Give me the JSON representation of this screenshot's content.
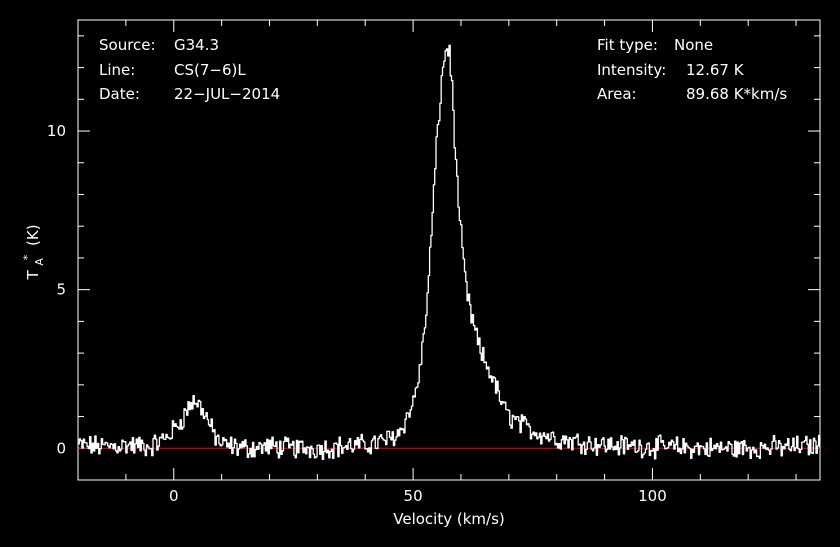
{
  "chart_data": {
    "type": "line",
    "xlabel": "Velocity (km/s)",
    "ylabel": {
      "main": "T",
      "sup": "*",
      "sub": "A",
      "unit": "(K)"
    },
    "xlim": [
      -20,
      135
    ],
    "ylim": [
      -1,
      13.5
    ],
    "xticks": [
      0,
      50,
      100
    ],
    "yticks": [
      0,
      5,
      10
    ],
    "baseline": {
      "y": 0,
      "color": "#ff0000"
    },
    "line_color": "#ffffff",
    "background": "#000000",
    "info_left": [
      {
        "label": "Source:",
        "value": "G34.3"
      },
      {
        "label": "Line:",
        "value": "CS(7−6)L"
      },
      {
        "label": "Date:",
        "value": "22−JUL−2014"
      }
    ],
    "info_right": [
      {
        "label": "Fit type:",
        "value": "None"
      },
      {
        "label": "Intensity:",
        "value": "12.67 K"
      },
      {
        "label": "Area:",
        "value": "89.68 K*km/s"
      }
    ],
    "series": [
      {
        "x": [
          -20,
          -15,
          -10,
          -5,
          -2,
          0,
          2,
          3,
          4,
          5,
          6,
          7,
          8,
          9,
          10,
          15,
          20,
          25,
          30,
          35,
          40,
          43,
          45,
          47,
          48,
          49,
          50,
          51,
          52,
          53,
          54,
          55,
          56,
          56.5,
          57,
          57.5,
          58,
          58.5,
          59,
          60,
          61,
          62,
          63,
          64,
          65,
          66,
          67,
          68,
          69,
          70,
          72,
          74,
          76,
          78,
          80,
          85,
          90,
          100,
          110,
          120,
          130,
          135
        ],
        "y": [
          0.1,
          0.05,
          0.1,
          0.05,
          0.3,
          0.6,
          1.0,
          1.3,
          1.5,
          1.4,
          1.2,
          0.9,
          0.5,
          0.3,
          0.1,
          0.0,
          0.05,
          0.0,
          0.0,
          0.05,
          0.1,
          0.2,
          0.3,
          0.5,
          0.8,
          1.1,
          1.5,
          2.2,
          3.3,
          5.0,
          7.5,
          10.0,
          11.8,
          12.4,
          12.67,
          12.4,
          11.5,
          10.0,
          8.5,
          6.5,
          5.0,
          4.2,
          3.6,
          3.0,
          2.7,
          2.4,
          2.0,
          1.6,
          1.2,
          1.0,
          0.8,
          0.6,
          0.5,
          0.4,
          0.3,
          0.2,
          0.1,
          0.05,
          0.0,
          0.0,
          0.05,
          0.1
        ]
      }
    ]
  }
}
